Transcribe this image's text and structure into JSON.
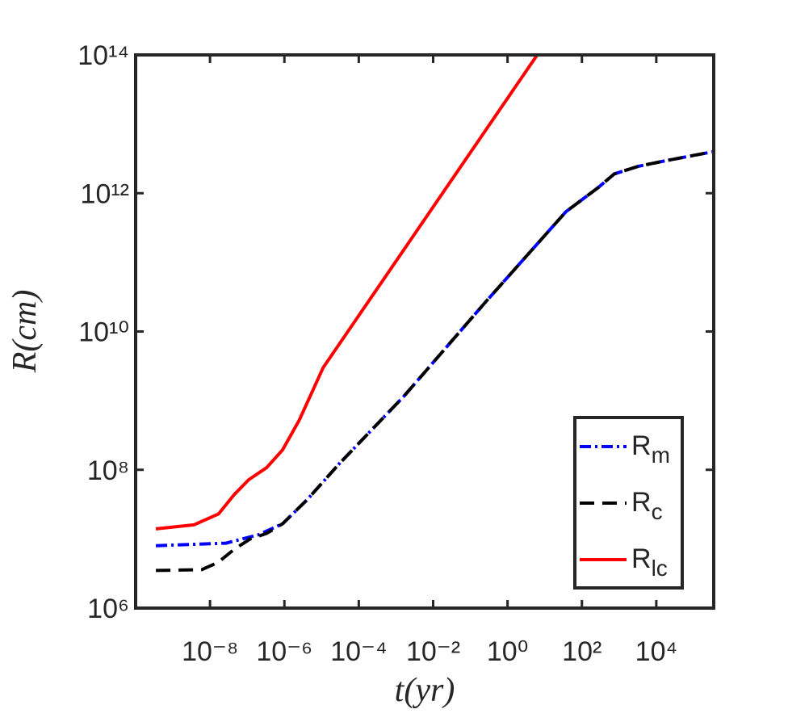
{
  "chart_data": {
    "type": "line",
    "xlabel": "t(yr)",
    "ylabel": "R(cm)",
    "xscale": "log",
    "yscale": "log",
    "xlim": [
      1e-10,
      350000.0
    ],
    "ylim": [
      1000000.0,
      100000000000000.0
    ],
    "xticks": [
      {
        "value": 1e-08,
        "label": "10⁻⁸"
      },
      {
        "value": 1e-06,
        "label": "10⁻⁶"
      },
      {
        "value": 0.0001,
        "label": "10⁻⁴"
      },
      {
        "value": 0.01,
        "label": "10⁻²"
      },
      {
        "value": 1,
        "label": "10⁰"
      },
      {
        "value": 100,
        "label": "10²"
      },
      {
        "value": 10000,
        "label": "10⁴"
      }
    ],
    "yticks": [
      {
        "value": 1000000.0,
        "label": "10⁶"
      },
      {
        "value": 100000000.0,
        "label": "10⁸"
      },
      {
        "value": 10000000000.0,
        "label": "10¹⁰"
      },
      {
        "value": 1000000000000.0,
        "label": "10¹²"
      },
      {
        "value": 100000000000000.0,
        "label": "10¹⁴"
      }
    ],
    "legend": "lower right",
    "series": [
      {
        "name": "Rm",
        "color": "#0000ff",
        "style": "dashdot",
        "x": [
          3.5e-10,
          2.7e-08,
          2e-07,
          9e-07,
          4.1e-06,
          3e-05,
          0.00166,
          0.245,
          37,
          270,
          740,
          3300,
          15000,
          350000
        ],
        "values": [
          8000000.0,
          8700000.0,
          11500000.0,
          16600000.0,
          37000000.0,
          123000000.0,
          1170000000.0,
          26000000000.0,
          540000000000.0,
          1200000000000.0,
          1900000000000.0,
          2450000000000.0,
          2900000000000.0,
          4000000000000.0
        ]
      },
      {
        "name": "Rc",
        "color": "#000000",
        "style": "dashed",
        "x": [
          3.5e-10,
          6e-09,
          1.66e-08,
          4.5e-08,
          1.2e-07,
          3.3e-07,
          9e-07,
          4.1e-06,
          3e-05,
          0.00166,
          0.245,
          37,
          270,
          740,
          3300,
          15000,
          350000
        ],
        "values": [
          3500000.0,
          3600000.0,
          4600000.0,
          7100000.0,
          10000000.0,
          12000000.0,
          16600000.0,
          37000000.0,
          123000000.0,
          1170000000.0,
          26000000000.0,
          540000000000.0,
          1200000000000.0,
          1900000000000.0,
          2450000000000.0,
          2900000000000.0,
          4000000000000.0
        ]
      },
      {
        "name": "Rlc",
        "color": "#ff0000",
        "style": "solid",
        "x": [
          3.5e-10,
          3.7e-09,
          1.7e-08,
          4.5e-08,
          1.1e-07,
          3.3e-07,
          9e-07,
          2.5e-06,
          1.1e-05,
          0.0074,
          6.3
        ],
        "values": [
          14000000.0,
          16000000.0,
          23000000.0,
          44000000.0,
          72000000.0,
          107000000.0,
          195000000.0,
          520000000.0,
          3000000000.0,
          500000000000.0,
          100000000000000.0
        ]
      }
    ]
  }
}
